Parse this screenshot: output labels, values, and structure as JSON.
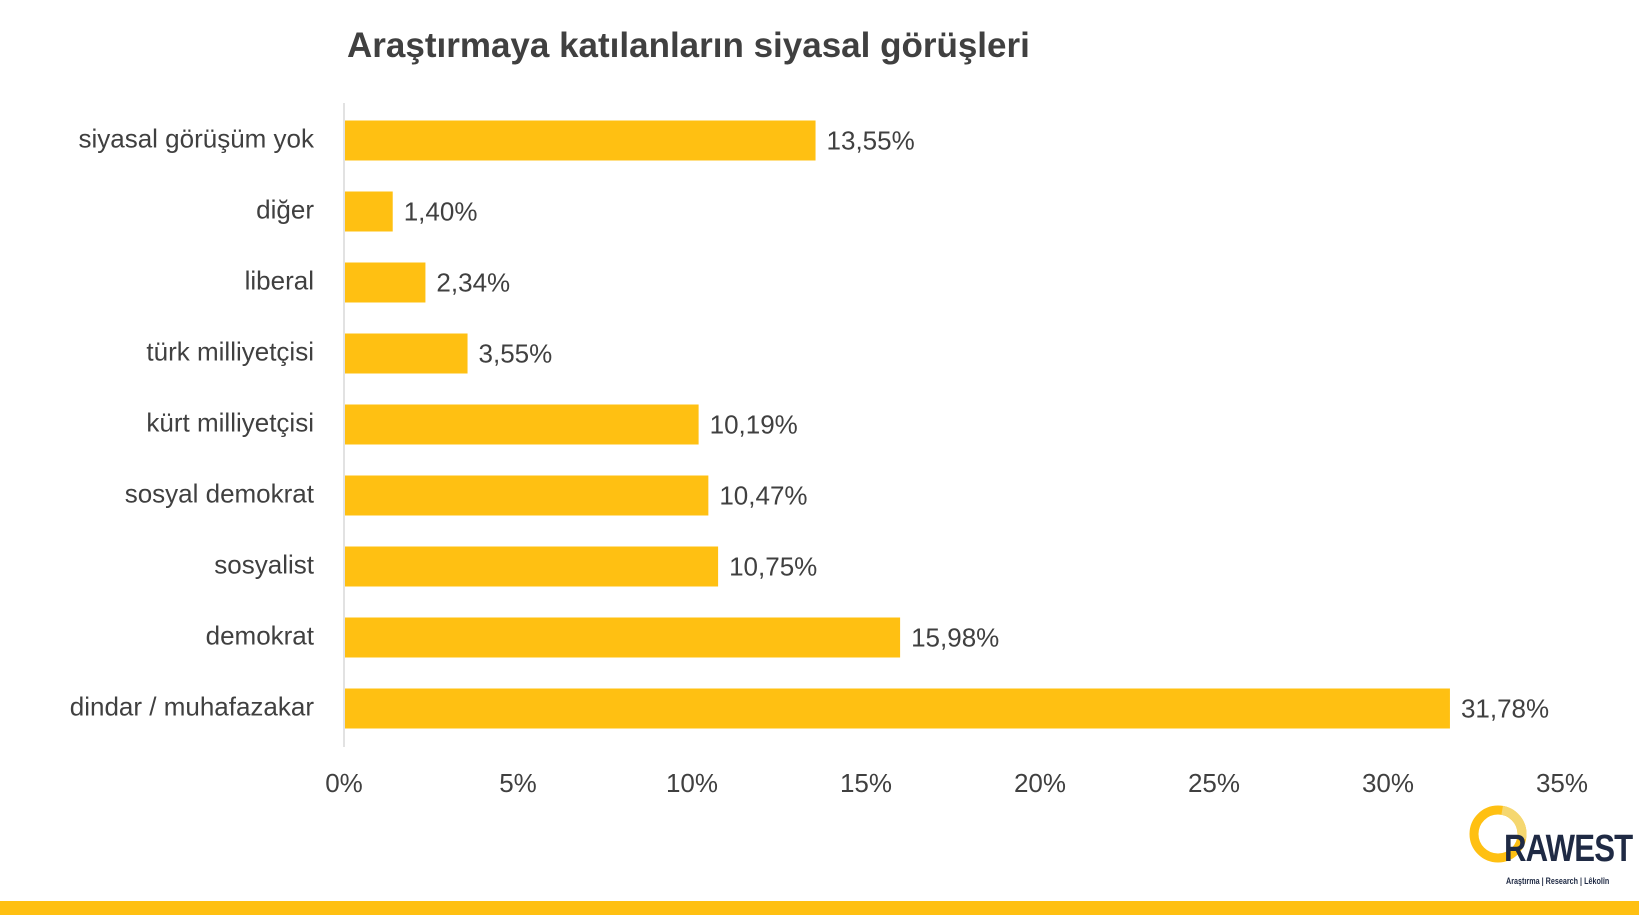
{
  "colors": {
    "bar": "#FFC012",
    "axis_line": "#D9D9D9",
    "label_text": "#404040",
    "title_text": "#404040",
    "band": "#FFC012",
    "logo_dark": "#1F2A44"
  },
  "logo": {
    "word": "RAWEST",
    "tagline": "Araştırma | Research | Lêkolîn"
  },
  "chart_data": {
    "type": "bar",
    "orientation": "horizontal",
    "title": "Araştırmaya katılanların siyasal görüşleri",
    "xlabel": "",
    "ylabel": "",
    "xlim": [
      0,
      35
    ],
    "grid": false,
    "legend": "none",
    "x_ticks": [
      "0%",
      "5%",
      "10%",
      "15%",
      "20%",
      "25%",
      "30%",
      "35%"
    ],
    "x_tick_values": [
      0,
      5,
      10,
      15,
      20,
      25,
      30,
      35
    ],
    "categories": [
      "siyasal görüşüm yok",
      "diğer",
      "liberal",
      "türk milliyetçisi",
      "kürt milliyetçisi",
      "sosyal demokrat",
      "sosyalist",
      "demokrat",
      "dindar / muhafazakar"
    ],
    "values": [
      13.55,
      1.4,
      2.34,
      3.55,
      10.19,
      10.47,
      10.75,
      15.98,
      31.78
    ],
    "data_labels": [
      "13,55%",
      "1,40%",
      "2,34%",
      "3,55%",
      "10,19%",
      "10,47%",
      "10,75%",
      "15,98%",
      "31,78%"
    ]
  }
}
